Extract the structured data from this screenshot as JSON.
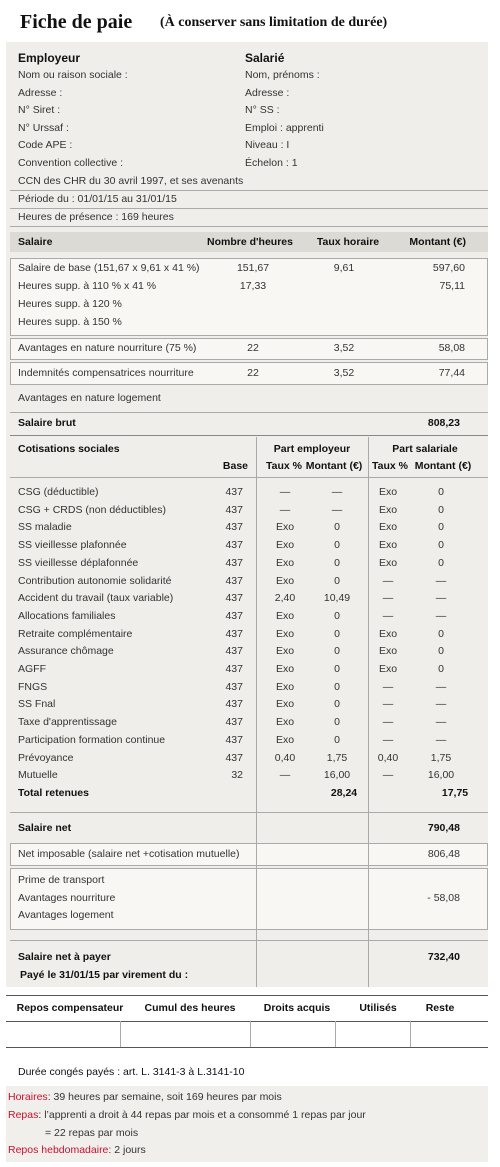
{
  "header": {
    "title": "Fiche de paie",
    "subtitle": "(À conserver sans limitation de durée)"
  },
  "employer": {
    "heading": "Employeur",
    "lines": [
      "Nom ou raison sociale :",
      "Adresse :",
      "N° Siret :",
      "N° Urssaf :",
      "Code APE :",
      "Convention collective :"
    ]
  },
  "employee": {
    "heading": "Salarié",
    "lines": [
      "Nom, prénoms :",
      "Adresse :",
      "N° SS :",
      "Emploi : apprenti",
      "Niveau : I",
      "Échelon : 1"
    ]
  },
  "info_lines": [
    "CCN des CHR du 30 avril 1997, et ses avenants",
    "Période du : 01/01/15 au 31/01/15",
    "Heures de présence : 169 heures"
  ],
  "salary": {
    "headers": [
      "Salaire",
      "Nombre d'heures",
      "Taux horaire",
      "Montant (€)"
    ],
    "rows": [
      [
        "Salaire de base (151,67 x 9,61 x 41 %)",
        "151,67",
        "9,61",
        "597,60"
      ],
      [
        "Heures supp. à 110 % x 41 %",
        "17,33",
        null,
        "75,11"
      ],
      [
        "Heures supp. à 120 %",
        null,
        null,
        null
      ],
      [
        "Heures supp. à 150 %",
        null,
        null,
        null
      ],
      [
        "Avantages en nature nourriture (75 %)",
        "22",
        "3,52",
        "58,08"
      ],
      [
        "Indemnités compensatrices nourriture",
        "22",
        "3,52",
        "77,44"
      ],
      [
        "Avantages en nature logement",
        null,
        null,
        null
      ]
    ],
    "gross": {
      "label": "Salaire brut",
      "amount": "808,23"
    }
  },
  "contributions": {
    "title": "Cotisations sociales",
    "base_header": "Base",
    "employer_header": "Part employeur",
    "employee_header": "Part salariale",
    "employer_columns": [
      "Taux %",
      "Montant (€)"
    ],
    "employee_columns": [
      "Taux %",
      "Montant (€)"
    ],
    "rows": [
      [
        "CSG (déductible)",
        "437",
        "—",
        "—",
        "Exo",
        "0"
      ],
      [
        "CSG + CRDS (non déductibles)",
        "437",
        "—",
        "—",
        "Exo",
        "0"
      ],
      [
        "SS maladie",
        "437",
        "Exo",
        "0",
        "Exo",
        "0"
      ],
      [
        "SS vieillesse plafonnée",
        "437",
        "Exo",
        "0",
        "Exo",
        "0"
      ],
      [
        "SS vieillesse déplafonnée",
        "437",
        "Exo",
        "0",
        "Exo",
        "0"
      ],
      [
        "Contribution autonomie solidarité",
        "437",
        "Exo",
        "0",
        "—",
        "—"
      ],
      [
        "Accident du travail (taux variable)",
        "437",
        "2,40",
        "10,49",
        "—",
        "—"
      ],
      [
        "Allocations familiales",
        "437",
        "Exo",
        "0",
        "—",
        "—"
      ],
      [
        "Retraite complémentaire",
        "437",
        "Exo",
        "0",
        "Exo",
        "0"
      ],
      [
        "Assurance chômage",
        "437",
        "Exo",
        "0",
        "Exo",
        "0"
      ],
      [
        "AGFF",
        "437",
        "Exo",
        "0",
        "Exo",
        "0"
      ],
      [
        "FNGS",
        "437",
        "Exo",
        "0",
        "—",
        "—"
      ],
      [
        "SS Fnal",
        "437",
        "Exo",
        "0",
        "—",
        "—"
      ],
      [
        "Taxe d'apprentissage",
        "437",
        "Exo",
        "0",
        "—",
        "—"
      ],
      [
        "Participation formation continue",
        "437",
        "Exo",
        "0",
        "—",
        "—"
      ],
      [
        "Prévoyance",
        "437",
        "0,40",
        "1,75",
        "0,40",
        "1,75"
      ],
      [
        "Mutuelle",
        "32",
        "—",
        "16,00",
        "—",
        "16,00"
      ]
    ],
    "totals": {
      "label": "Total retenues",
      "employer": "28,24",
      "employee": "17,75"
    }
  },
  "net": {
    "label": "Salaire net",
    "amount": "790,48"
  },
  "taxable": {
    "label": "Net imposable (salaire net +cotisation mutuelle)",
    "amount": "806,48"
  },
  "adjustments": [
    {
      "label": "Prime de transport",
      "amount": null
    },
    {
      "label": "Avantages nourriture",
      "amount": "- 58,08"
    },
    {
      "label": "Avantages logement",
      "amount": null
    }
  ],
  "net_pay": {
    "label": "Salaire net à payer",
    "amount": "732,40"
  },
  "payment": "Payé le 31/01/15 par virement du :",
  "rest_table": {
    "headers": [
      "Repos compensateur",
      "Cumul des heures",
      "Droits acquis",
      "Utilisés",
      "Reste"
    ]
  },
  "paid_leave": "Durée congés payés : art. L. 3141-3  à  L.3141-10",
  "notes": [
    {
      "label": "Horaires",
      "text": " : 39 heures par semaine, soit 169 heures par mois"
    },
    {
      "label": "Repas",
      "text": " : l’apprenti a droit à 44 repas par mois et a consommé 1 repas par jour",
      "continuation": "= 22 repas par mois"
    },
    {
      "label": "Repos hebdomadaire",
      "text": " : 2 jours"
    }
  ]
}
